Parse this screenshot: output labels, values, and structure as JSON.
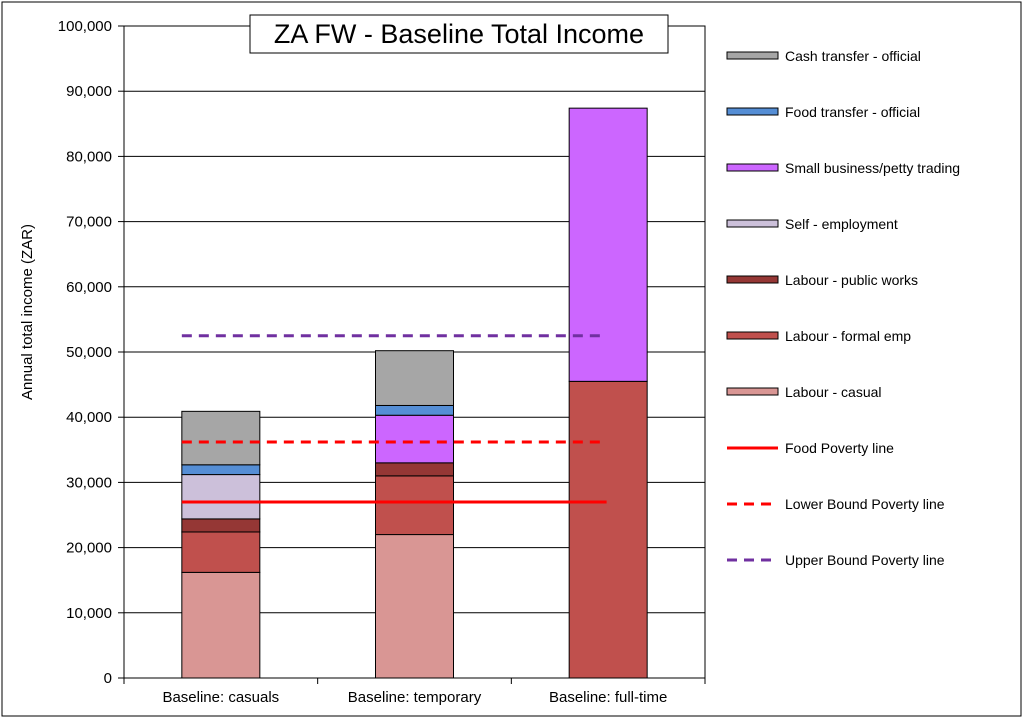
{
  "chart_data": {
    "type": "bar",
    "stacked": true,
    "title": "ZA FW - Baseline Total Income",
    "ylabel": "Annual total income (ZAR)",
    "xlabel": "",
    "ylim": [
      0,
      100000
    ],
    "yticks": [
      0,
      10000,
      20000,
      30000,
      40000,
      50000,
      60000,
      70000,
      80000,
      90000,
      100000
    ],
    "ytick_labels": [
      "0",
      "10,000",
      "20,000",
      "30,000",
      "40,000",
      "50,000",
      "60,000",
      "70,000",
      "80,000",
      "90,000",
      "100,000"
    ],
    "grid": true,
    "legend_position": "right",
    "categories": [
      "Baseline: casuals",
      "Baseline: temporary",
      "Baseline: full-time"
    ],
    "series": [
      {
        "name": "Labour - casual",
        "color": "#d99694",
        "values": [
          16200,
          22000,
          0
        ]
      },
      {
        "name": "Labour - formal emp",
        "color": "#c0504d",
        "values": [
          6200,
          9000,
          45500
        ]
      },
      {
        "name": "Labour - public works",
        "color": "#953735",
        "values": [
          2000,
          2000,
          0
        ]
      },
      {
        "name": "Self - employment",
        "color": "#ccc0da",
        "values": [
          6800,
          0,
          0
        ]
      },
      {
        "name": "Small business/petty trading",
        "color": "#cc66ff",
        "values": [
          0,
          7300,
          41900
        ]
      },
      {
        "name": "Food transfer - official",
        "color": "#558ed5",
        "values": [
          1500,
          1500,
          0
        ]
      },
      {
        "name": "Cash transfer - official",
        "color": "#a6a6a6",
        "values": [
          8200,
          8400,
          0
        ]
      }
    ],
    "lines": [
      {
        "name": "Food Poverty line",
        "color": "#ff0000",
        "style": "solid",
        "value": 27000
      },
      {
        "name": "Lower Bound Poverty line",
        "color": "#ff0000",
        "style": "dashed",
        "value": 36200
      },
      {
        "name": "Upper Bound Poverty line",
        "color": "#7030a0",
        "style": "dashed",
        "value": 52500
      }
    ],
    "legend_order": [
      "Cash transfer - official",
      "Food transfer - official",
      "Small business/petty trading",
      "Self - employment",
      "Labour - public works",
      "Labour - formal emp",
      "Labour - casual",
      "Food Poverty line",
      "Lower Bound Poverty line",
      "Upper Bound Poverty line"
    ]
  }
}
